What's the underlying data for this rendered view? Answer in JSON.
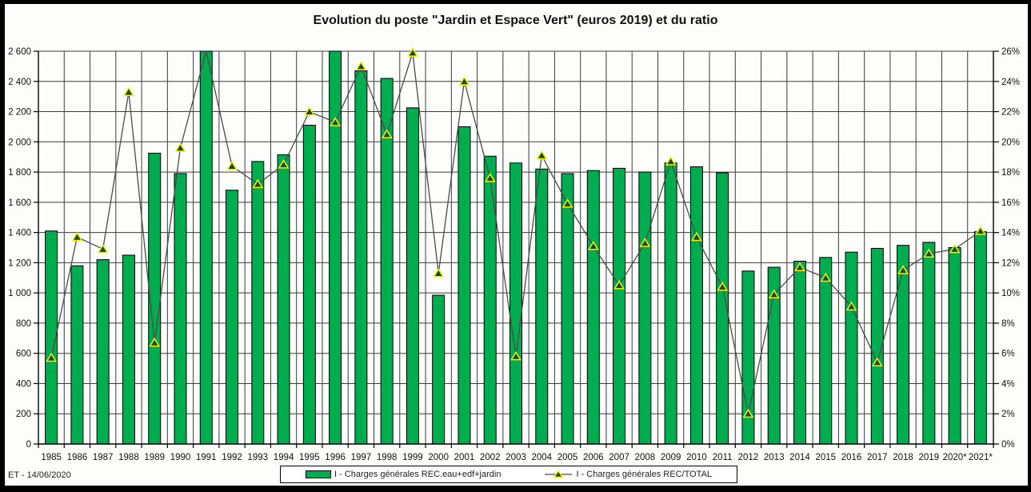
{
  "header": {
    "title": "Evolution du poste \"Jardin et Espace Vert\" (euros 2019) et du ratio"
  },
  "footer": {
    "stamp": "ET - 14/06/2020"
  },
  "legend": {
    "items": [
      {
        "label": "I - Charges générales REC.eau+edf+jardin",
        "type": "bar-swatch"
      },
      {
        "label": "I - Charges générales REC/TOTAL",
        "type": "line-marker"
      }
    ]
  },
  "colors": {
    "bar_fill": "#00AC50",
    "bar_stroke": "#000000",
    "line": "#4a4a4a",
    "marker_fill": "#1d4a1d",
    "marker_stroke": "#f2f200",
    "grid": "#3c3c3c",
    "axis": "#000000",
    "text": "#111111",
    "background": "#fdfdfb",
    "frame": "#000000"
  },
  "chart_data": {
    "type": "bar",
    "subtype": "bar+line combo, dual axis",
    "title": "Evolution du poste \"Jardin et Espace Vert\" (euros 2019) et du ratio",
    "categories": [
      "1985",
      "1986",
      "1987",
      "1988",
      "1989",
      "1990",
      "1991",
      "1992",
      "1993",
      "1994",
      "1995",
      "1996",
      "1997",
      "1998",
      "1999",
      "2000",
      "2001",
      "2002",
      "2003",
      "2004",
      "2005",
      "2006",
      "2007",
      "2008",
      "2009",
      "2010",
      "2011",
      "2012",
      "2013",
      "2014",
      "2015",
      "2016",
      "2017",
      "2018",
      "2019",
      "2020*",
      "2021*"
    ],
    "series": [
      {
        "name": "I - Charges générales REC.eau+edf+jardin",
        "type": "bar",
        "axis": "left",
        "values": [
          1410,
          1180,
          1220,
          1250,
          1925,
          1790,
          2600,
          1680,
          1870,
          1915,
          2110,
          2600,
          2470,
          2420,
          2225,
          985,
          2100,
          1905,
          1860,
          1820,
          1790,
          1810,
          1825,
          1800,
          1860,
          1835,
          1795,
          1145,
          1170,
          1210,
          1235,
          1270,
          1295,
          1315,
          1335,
          1300,
          1405
        ]
      },
      {
        "name": "I - Charges générales REC/TOTAL",
        "type": "line",
        "axis": "right",
        "values": [
          5.7,
          13.7,
          12.9,
          23.3,
          6.7,
          19.6,
          26,
          18.4,
          17.2,
          18.5,
          22,
          21.3,
          25,
          20.5,
          25.9,
          11.3,
          24,
          17.6,
          5.8,
          19.1,
          15.9,
          13.1,
          10.5,
          13.3,
          18.7,
          13.7,
          10.4,
          2,
          9.9,
          11.7,
          11,
          9.1,
          5.4,
          11.5,
          12.6,
          12.9,
          14.1
        ]
      }
    ],
    "left_axis": {
      "min": 0,
      "max": 2600,
      "step": 200,
      "tick_labels": [
        "0",
        "200",
        "400",
        "600",
        "800",
        "1 000",
        "1 200",
        "1 400",
        "1 600",
        "1 800",
        "2 000",
        "2 200",
        "2 400",
        "2 600"
      ]
    },
    "right_axis": {
      "min": 0,
      "max": 26,
      "step": 2,
      "suffix": "%",
      "tick_labels": [
        "0%",
        "2%",
        "4%",
        "6%",
        "8%",
        "10%",
        "12%",
        "14%",
        "16%",
        "18%",
        "20%",
        "22%",
        "24%",
        "26%"
      ]
    },
    "grid": "horizontal and vertical gridlines, thin black",
    "legend_position": "bottom center, boxed",
    "clipped_at_axis_max": {
      "bars": [
        "1991",
        "1996"
      ],
      "line_markers": [
        "1991"
      ]
    }
  }
}
